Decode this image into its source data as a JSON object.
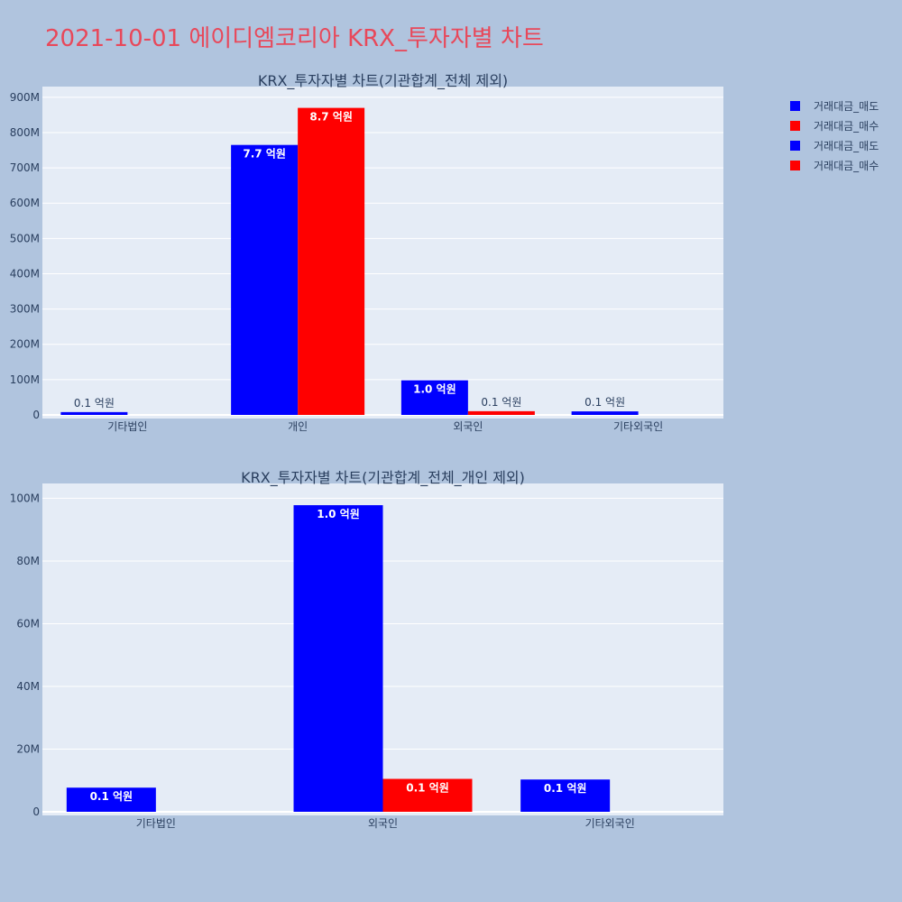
{
  "title": "2021-10-01 에이디엠코리아 KRX_투자자별 차트",
  "colors": {
    "background": "#b0c4de",
    "plot_bg": "#e5ecf6",
    "sell": "#0000ff",
    "buy": "#ff0000",
    "title": "#e8485a"
  },
  "legend": [
    {
      "label": "거래대금_매도",
      "color": "#0000ff"
    },
    {
      "label": "거래대금_매수",
      "color": "#ff0000"
    },
    {
      "label": "거래대금_매도",
      "color": "#0000ff"
    },
    {
      "label": "거래대금_매수",
      "color": "#ff0000"
    }
  ],
  "chart_data": [
    {
      "type": "bar",
      "title": "KRX_투자자별 차트(기관합계_전체 제외)",
      "categories": [
        "기타법인",
        "개인",
        "외국인",
        "기타외국인"
      ],
      "series": [
        {
          "name": "거래대금_매도",
          "color": "#0000ff",
          "values": [
            8000000,
            765000000,
            98000000,
            10000000
          ],
          "labels": [
            "0.1 억원",
            "7.7 억원",
            "1.0 억원",
            "0.1 억원"
          ]
        },
        {
          "name": "거래대금_매수",
          "color": "#ff0000",
          "values": [
            0,
            870000000,
            10500000,
            0
          ],
          "labels": [
            "",
            "8.7 억원",
            "0.1 억원",
            ""
          ]
        }
      ],
      "yticks": [
        "0",
        "100M",
        "200M",
        "300M",
        "400M",
        "500M",
        "600M",
        "700M",
        "800M",
        "900M"
      ],
      "ylim": [
        0,
        915000000
      ],
      "grid": true
    },
    {
      "type": "bar",
      "title": "KRX_투자자별 차트(기관합계_전체_개인 제외)",
      "categories": [
        "기타법인",
        "외국인",
        "기타외국인"
      ],
      "series": [
        {
          "name": "거래대금_매도",
          "color": "#0000ff",
          "values": [
            7700000,
            97800000,
            10300000
          ],
          "labels": [
            "0.1 억원",
            "1.0 억원",
            "0.1 억원"
          ]
        },
        {
          "name": "거래대금_매수",
          "color": "#ff0000",
          "values": [
            0,
            10500000,
            0
          ],
          "labels": [
            "",
            "0.1 억원",
            ""
          ]
        }
      ],
      "yticks": [
        "0",
        "20M",
        "40M",
        "60M",
        "80M",
        "100M"
      ],
      "ylim": [
        0,
        103000000
      ],
      "grid": true
    }
  ]
}
